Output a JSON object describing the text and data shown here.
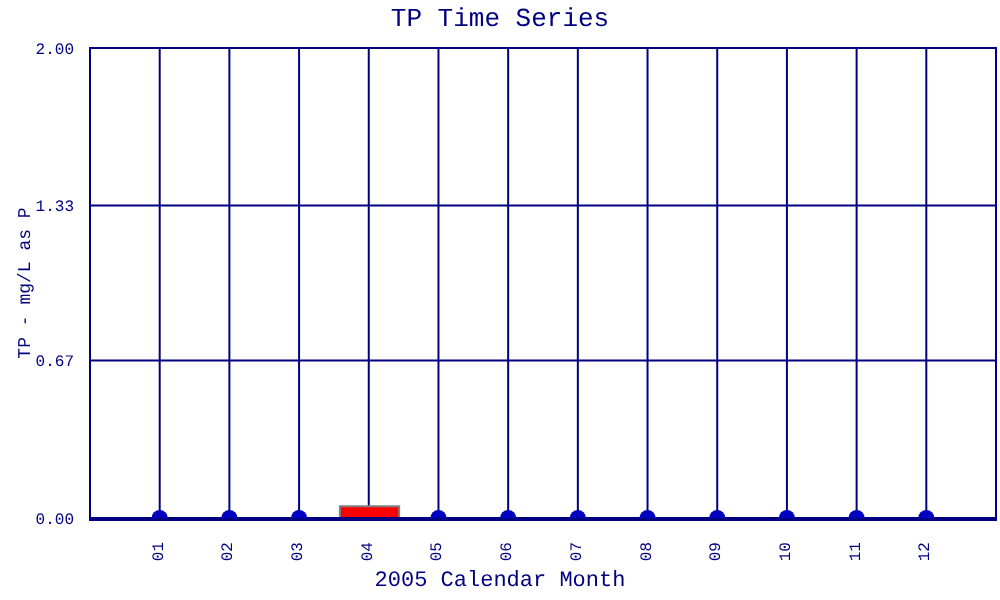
{
  "chart_data": {
    "type": "scatter",
    "title": "TP Time Series",
    "xlabel": "2005 Calendar Month",
    "ylabel": "TP - mg/L as P",
    "categories": [
      "01",
      "02",
      "03",
      "04",
      "05",
      "06",
      "07",
      "08",
      "09",
      "10",
      "11",
      "12"
    ],
    "series": [
      {
        "color": "#0000c0",
        "values": [
          0,
          0,
          0,
          null,
          0,
          0,
          0,
          0,
          0,
          0,
          0,
          0
        ]
      },
      {
        "type": "bar",
        "color": "#ff0000",
        "values": [
          null,
          null,
          null,
          0.05,
          null,
          null,
          null,
          null,
          null,
          null,
          null,
          null
        ]
      }
    ],
    "ylim": [
      0,
      2
    ],
    "yticks": [
      {
        "value": 0,
        "label": "0.00"
      },
      {
        "value": 0.67,
        "label": "0.67"
      },
      {
        "value": 1.33,
        "label": "1.33"
      },
      {
        "value": 2,
        "label": "2.00"
      }
    ],
    "grid": true,
    "marker": "circle"
  }
}
